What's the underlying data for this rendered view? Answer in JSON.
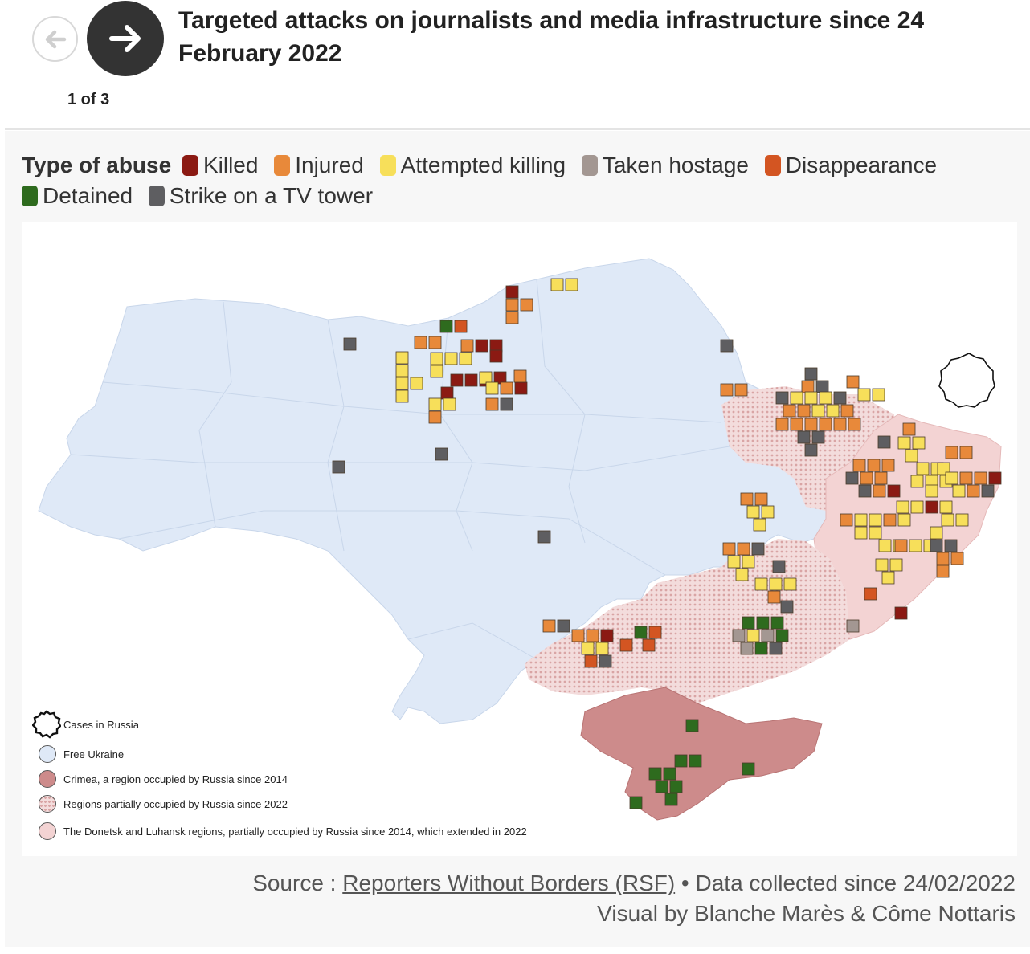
{
  "nav": {
    "back_icon": "arrow-left-icon",
    "next_icon": "arrow-right-icon",
    "page_indicator": "1 of 3"
  },
  "title": "Targeted attacks on journalists and media infrastructure since 24 February 2022",
  "legend": {
    "title": "Type of abuse",
    "items": [
      {
        "label": "Killed",
        "color": "#8b1a13"
      },
      {
        "label": "Injured",
        "color": "#e8893a"
      },
      {
        "label": "Attempted killing",
        "color": "#f7df5a"
      },
      {
        "label": "Taken hostage",
        "color": "#a39792"
      },
      {
        "label": "Disappearance",
        "color": "#d35522"
      },
      {
        "label": "Detained",
        "color": "#2e6b1e"
      },
      {
        "label": "Strike on a TV tower",
        "color": "#5e5e61"
      }
    ]
  },
  "map_legend": {
    "russia": "Cases in Russia",
    "free": "Free Ukraine",
    "crimea": "Crimea, a region occupied by Russia since 2014",
    "partial": "Regions partially occupied by Russia since 2022",
    "donbas": "The Donetsk and Luhansk regions, partially occupied by Russia since 2014, which extended in 2022"
  },
  "region_colors": {
    "free": "#dfe9f7",
    "crimea": "#cd8b8b",
    "partial": "#f0d0cf",
    "donbas": "#f3d3d3"
  },
  "source": {
    "prefix": "Source : ",
    "link": "Reporters Without Borders (RSF)",
    "suffix": " • Data collected since 24/02/2022",
    "credit": "Visual by Blanche Marès & Côme Nottaris"
  }
}
